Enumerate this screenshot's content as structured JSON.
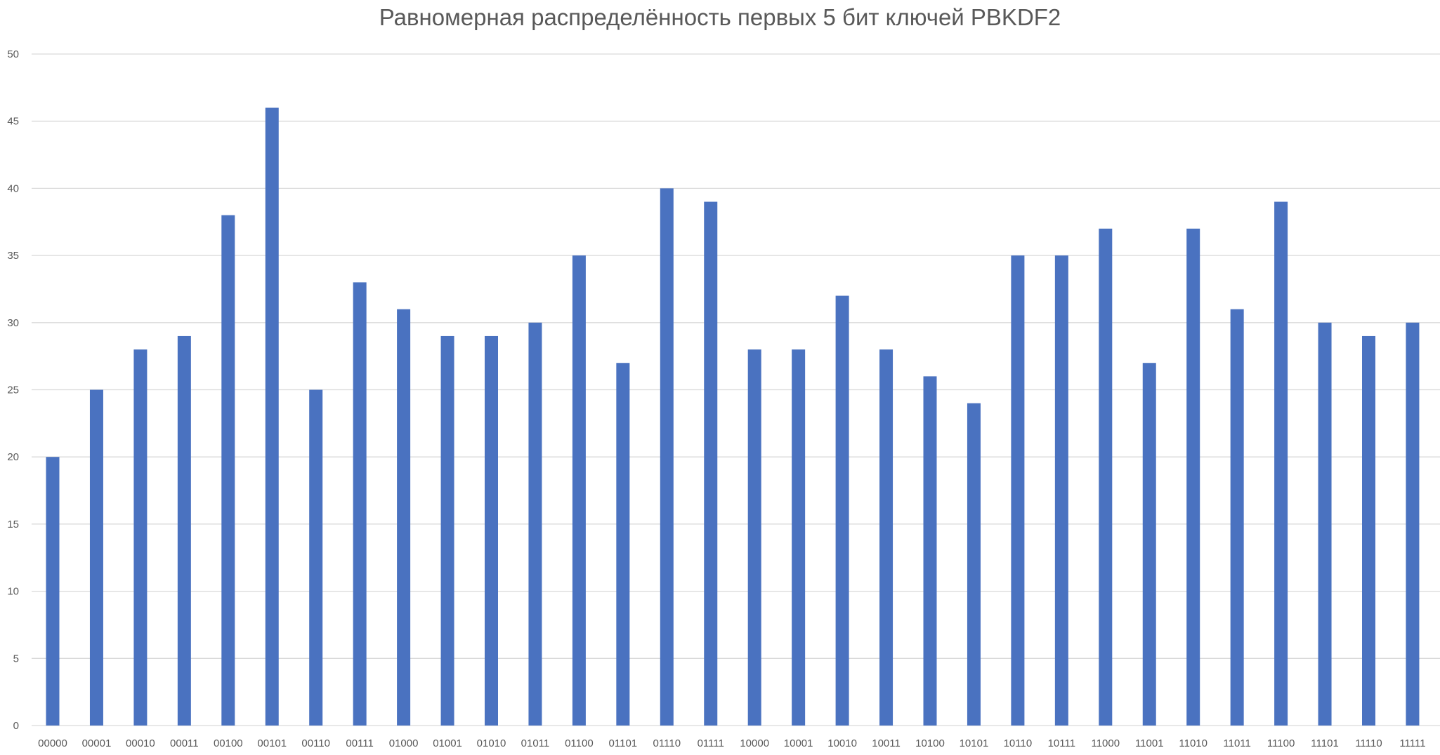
{
  "chart_data": {
    "type": "bar",
    "title": "Равномерная распределённость первых 5 бит ключей PBKDF2",
    "xlabel": "",
    "ylabel": "",
    "categories": [
      "00000",
      "00001",
      "00010",
      "00011",
      "00100",
      "00101",
      "00110",
      "00111",
      "01000",
      "01001",
      "01010",
      "01011",
      "01100",
      "01101",
      "01110",
      "01111",
      "10000",
      "10001",
      "10010",
      "10011",
      "10100",
      "10101",
      "10110",
      "10111",
      "11000",
      "11001",
      "11010",
      "11011",
      "11100",
      "11101",
      "11110",
      "11111"
    ],
    "values": [
      20,
      25,
      28,
      29,
      38,
      46,
      25,
      33,
      31,
      29,
      29,
      30,
      35,
      27,
      40,
      39,
      28,
      28,
      32,
      28,
      26,
      24,
      35,
      35,
      37,
      27,
      37,
      31,
      39,
      30,
      29,
      30
    ],
    "ylim": [
      0,
      50
    ],
    "yticks": [
      0,
      5,
      10,
      15,
      20,
      25,
      30,
      35,
      40,
      45,
      50
    ],
    "grid": true,
    "legend": "none",
    "bar_color": "#4a72c0",
    "grid_color": "#d9d9d9"
  }
}
